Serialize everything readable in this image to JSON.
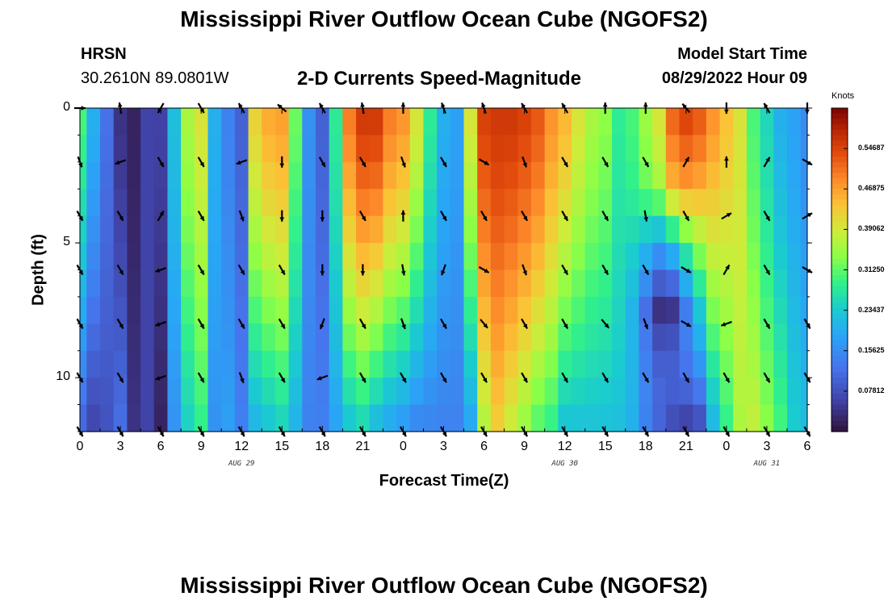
{
  "header": {
    "title": "Mississippi River Outflow Ocean Cube (NGOFS2)",
    "station_name": "HRSN",
    "station_coords": "30.2610N  89.0801W",
    "subtitle": "2-D Currents Speed-Magnitude",
    "model_start_label": "Model Start Time",
    "model_start_value": "08/29/2022 Hour 09"
  },
  "footer": {
    "title": "Mississippi River Outflow Ocean Cube (NGOFS2)"
  },
  "chart_data": {
    "type": "heatmap",
    "title": "2-D Currents Speed-Magnitude",
    "xlabel": "Forecast Time(Z)",
    "ylabel": "Depth (ft)",
    "x_tick_labels": [
      "0",
      "3",
      "6",
      "9",
      "12",
      "15",
      "18",
      "21",
      "0",
      "3",
      "6",
      "9",
      "12",
      "15",
      "18",
      "21",
      "0",
      "3",
      "6"
    ],
    "x_day_labels": [
      {
        "label": "AUG 29",
        "hour": 12
      },
      {
        "label": "AUG 30",
        "hour": 36
      },
      {
        "label": "AUG 31",
        "hour": 51
      }
    ],
    "xlim_hours": [
      0,
      54
    ],
    "y_tick_labels": [
      "0",
      "5",
      "10"
    ],
    "ylim_ft": [
      0,
      12
    ],
    "colorbar": {
      "label": "Knots",
      "tick_labels": [
        "0.54687",
        "0.46875",
        "0.39062",
        "0.31250",
        "0.23437",
        "0.15625",
        "0.07812"
      ],
      "range": [
        0,
        0.625
      ]
    },
    "speed_profile_knots": {
      "hours": [
        0,
        1,
        2,
        3,
        4,
        5,
        6,
        7,
        8,
        9,
        10,
        11,
        12,
        13,
        14,
        15,
        16,
        17,
        18,
        19,
        20,
        21,
        22,
        23,
        24,
        25,
        26,
        27,
        28,
        29,
        30,
        31,
        32,
        33,
        34,
        35,
        36,
        37,
        38,
        39,
        40,
        41,
        42,
        43,
        44,
        45,
        46,
        47,
        48,
        49,
        50,
        51,
        52,
        53,
        54
      ],
      "surface": [
        0.3,
        0.2,
        0.12,
        0.04,
        0.02,
        0.06,
        0.06,
        0.22,
        0.36,
        0.4,
        0.2,
        0.14,
        0.1,
        0.42,
        0.46,
        0.47,
        0.32,
        0.16,
        0.1,
        0.28,
        0.5,
        0.56,
        0.56,
        0.5,
        0.48,
        0.4,
        0.28,
        0.2,
        0.18,
        0.4,
        0.55,
        0.56,
        0.56,
        0.55,
        0.53,
        0.48,
        0.45,
        0.4,
        0.36,
        0.34,
        0.28,
        0.3,
        0.35,
        0.4,
        0.52,
        0.55,
        0.53,
        0.48,
        0.44,
        0.4,
        0.3,
        0.25,
        0.2,
        0.18,
        0.15
      ],
      "bottom": [
        0.1,
        0.06,
        0.08,
        0.12,
        0.04,
        0.06,
        0.02,
        0.16,
        0.24,
        0.28,
        0.16,
        0.18,
        0.14,
        0.2,
        0.22,
        0.24,
        0.2,
        0.14,
        0.14,
        0.18,
        0.22,
        0.24,
        0.2,
        0.18,
        0.16,
        0.14,
        0.14,
        0.14,
        0.14,
        0.18,
        0.36,
        0.42,
        0.38,
        0.34,
        0.3,
        0.28,
        0.22,
        0.22,
        0.22,
        0.22,
        0.22,
        0.2,
        0.14,
        0.1,
        0.06,
        0.04,
        0.06,
        0.2,
        0.28,
        0.36,
        0.38,
        0.34,
        0.3,
        0.24,
        0.22
      ],
      "mid_dip": {
        "hour_from": 41,
        "hour_to": 46,
        "depth_ft": 7.5,
        "min_knots": 0.0
      }
    },
    "arrow_hours": [
      0,
      3,
      6,
      9,
      12,
      15,
      18,
      21,
      24,
      27,
      30,
      33,
      36,
      39,
      42,
      45,
      48,
      51,
      54
    ],
    "arrow_depths_ft": [
      0,
      2,
      4,
      6,
      8,
      10,
      12
    ],
    "arrow_directions_deg": [
      [
        0,
        100,
        240,
        300,
        120,
        140,
        120,
        100,
        90,
        110,
        110,
        120,
        120,
        90,
        90,
        130,
        270,
        120,
        270
      ],
      [
        290,
        200,
        300,
        300,
        200,
        270,
        300,
        300,
        290,
        300,
        330,
        290,
        300,
        300,
        300,
        60,
        90,
        60,
        330
      ],
      [
        300,
        300,
        60,
        300,
        290,
        270,
        270,
        300,
        90,
        300,
        300,
        300,
        300,
        300,
        280,
        300,
        30,
        300,
        30
      ],
      [
        300,
        300,
        200,
        300,
        300,
        300,
        270,
        270,
        280,
        250,
        330,
        290,
        300,
        300,
        300,
        330,
        60,
        300,
        330
      ],
      [
        300,
        300,
        200,
        300,
        300,
        300,
        250,
        300,
        290,
        300,
        310,
        300,
        300,
        310,
        290,
        330,
        200,
        300,
        300
      ],
      [
        300,
        300,
        200,
        300,
        290,
        300,
        200,
        300,
        300,
        300,
        300,
        300,
        300,
        300,
        300,
        300,
        300,
        300,
        300
      ],
      [
        300,
        300,
        300,
        300,
        300,
        300,
        300,
        300,
        300,
        300,
        300,
        300,
        300,
        300,
        300,
        300,
        300,
        300,
        300
      ]
    ]
  }
}
